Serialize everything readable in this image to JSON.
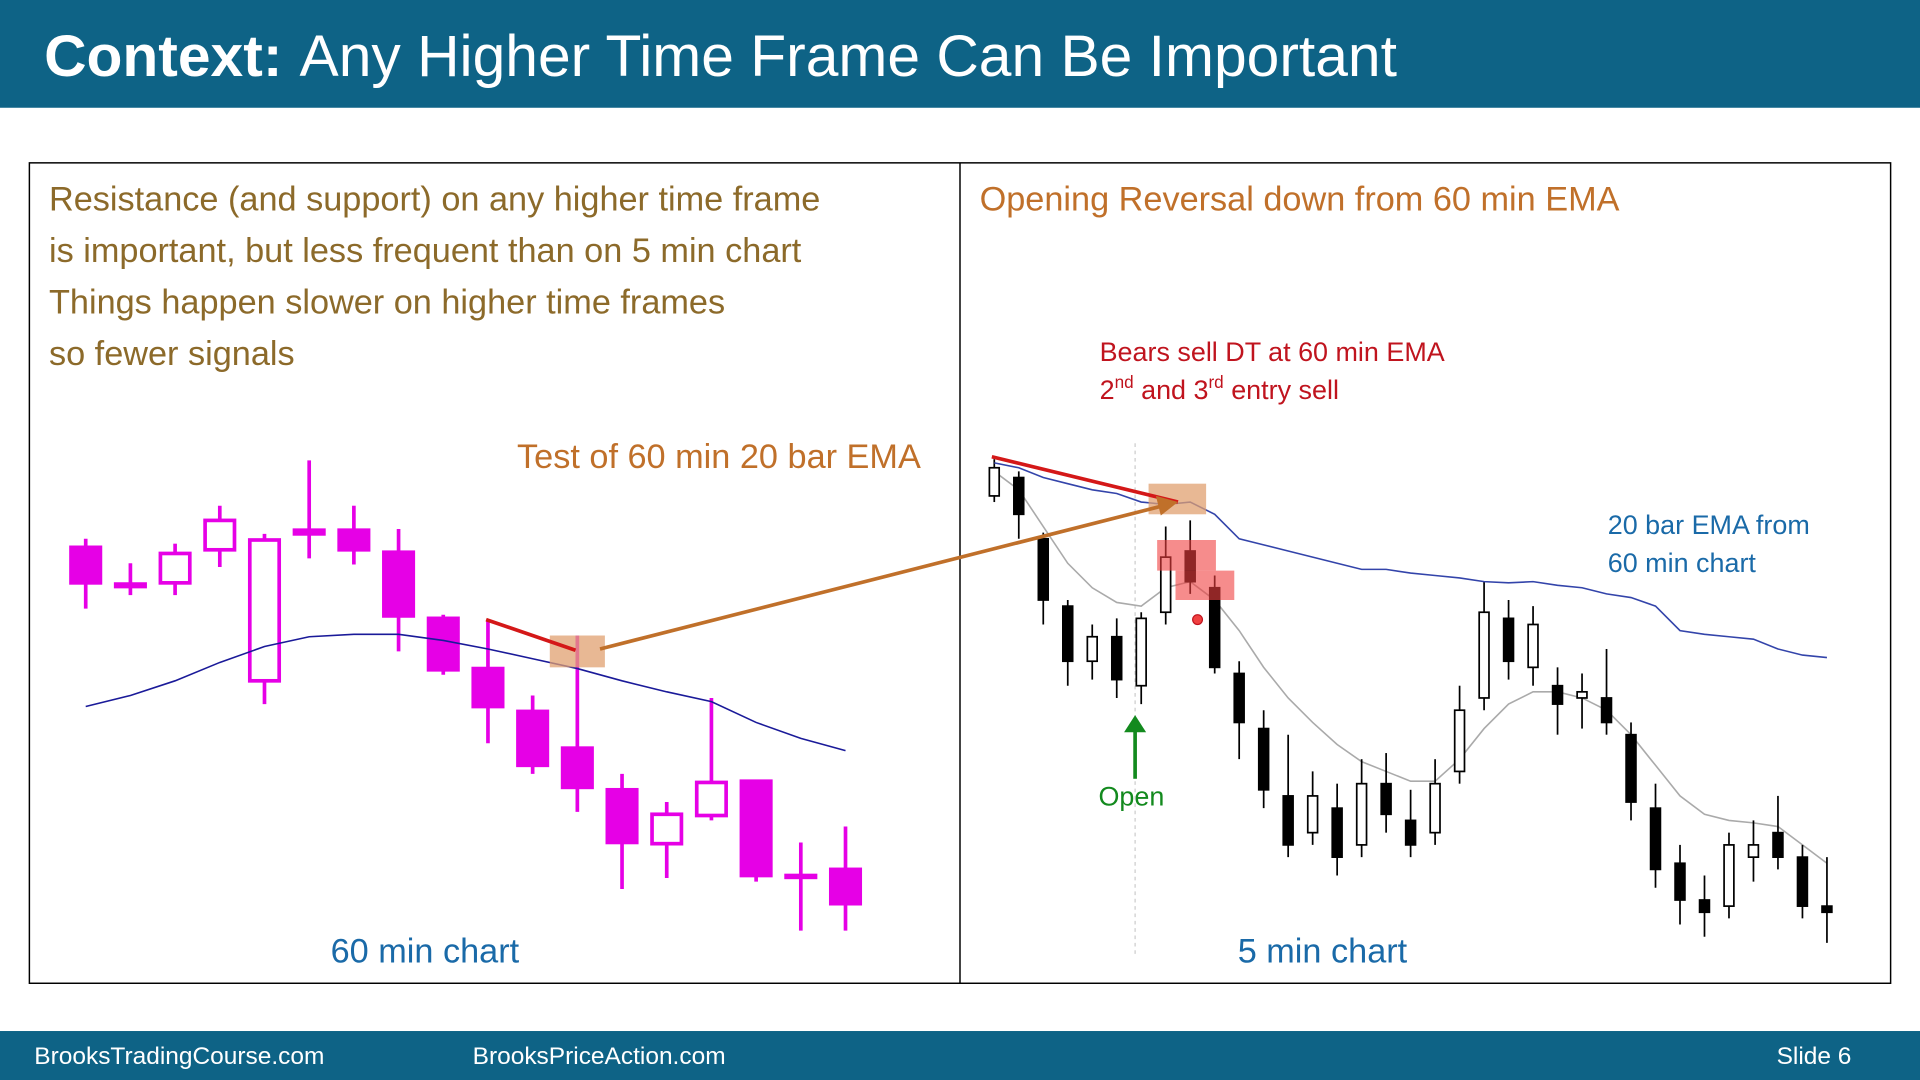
{
  "slide": {
    "title_bold": "Context:",
    "title": "Any Higher Time Frame Can Be Important",
    "left_text": [
      "Resistance (and support) on any higher time frame",
      "is important, but less frequent than on 5 min chart",
      "Things happen slower on higher time frames",
      "so fewer signals"
    ],
    "right_title": "Opening Reversal down from 60 min EMA",
    "footer_left": "BrooksTradingCourse.com",
    "footer_mid": "BrooksPriceAction.com",
    "footer_right": "Slide  6"
  },
  "chart_data": [
    {
      "type": "candlestick",
      "title": "60 min chart",
      "annotation": "Test of 60 min 20 bar EMA",
      "ylim": [
        0,
        450
      ],
      "bull_color": "#e600e6",
      "bear_color": "#e600e6",
      "bull_fill": "#ffffff",
      "ema_color": "#1a1a99",
      "open": [
        353,
        323,
        324,
        351,
        244,
        367,
        367,
        349,
        295,
        254,
        219,
        189,
        155,
        111,
        134,
        162,
        85,
        90
      ],
      "high": [
        360,
        340,
        356,
        387,
        364,
        424,
        387,
        368,
        298,
        294,
        232,
        281,
        168,
        145,
        230,
        162,
        112,
        125
      ],
      "low": [
        303,
        314,
        314,
        337,
        225,
        344,
        339,
        268,
        249,
        193,
        168,
        137,
        74,
        83,
        130,
        80,
        40,
        40
      ],
      "close": [
        324,
        321,
        348,
        375,
        359,
        364,
        351,
        297,
        253,
        223,
        175,
        157,
        112,
        135,
        161,
        85,
        84,
        62
      ],
      "ema": [
        223,
        232,
        244,
        259,
        272,
        280,
        282,
        282,
        277,
        270,
        262,
        254,
        244,
        235,
        227,
        210,
        197,
        187
      ]
    },
    {
      "type": "candlestick",
      "title": "5 min chart",
      "annotation": [
        "Bears sell DT at 60 min EMA",
        [
          "2",
          "nd",
          " and 3",
          "rd",
          " entry sell"
        ]
      ],
      "ema_label": [
        "20 bar EMA from",
        "60 min chart"
      ],
      "open_label": "Open",
      "ylim": [
        0,
        450
      ],
      "bull_color": "#000000",
      "bear_color": "#000000",
      "bull_fill": "#ffffff",
      "ema_color": "#3344aa",
      "ema2_color": "#aaaaaa",
      "open": [
        395,
        410,
        360,
        305,
        260,
        280,
        240,
        300,
        350,
        320,
        250,
        205,
        150,
        120,
        140,
        110,
        160,
        130,
        120,
        170,
        230,
        295,
        255,
        240,
        230,
        230,
        200,
        140,
        95,
        65,
        60,
        100,
        120,
        100,
        60
      ],
      "high": [
        425,
        415,
        365,
        310,
        290,
        295,
        300,
        370,
        375,
        330,
        260,
        220,
        200,
        170,
        160,
        180,
        185,
        155,
        180,
        240,
        325,
        310,
        305,
        255,
        250,
        270,
        210,
        160,
        110,
        85,
        120,
        130,
        150,
        110,
        100
      ],
      "low": [
        390,
        360,
        290,
        240,
        245,
        230,
        225,
        290,
        315,
        250,
        180,
        140,
        100,
        110,
        85,
        100,
        120,
        100,
        110,
        160,
        220,
        245,
        240,
        200,
        205,
        200,
        130,
        75,
        45,
        35,
        50,
        80,
        90,
        50,
        30
      ],
      "close": [
        418,
        380,
        310,
        260,
        280,
        245,
        295,
        345,
        325,
        255,
        210,
        155,
        110,
        150,
        100,
        160,
        135,
        110,
        160,
        220,
        300,
        260,
        290,
        225,
        235,
        210,
        145,
        90,
        65,
        55,
        110,
        110,
        100,
        60,
        55
      ],
      "ema": [
        422,
        418,
        410,
        405,
        400,
        397,
        390,
        388,
        390,
        380,
        360,
        355,
        350,
        345,
        340,
        335,
        335,
        332,
        330,
        328,
        325,
        324,
        325,
        322,
        320,
        315,
        312,
        305,
        285,
        282,
        280,
        278,
        270,
        265,
        263
      ],
      "ema2": [
        415,
        400,
        370,
        340,
        320,
        308,
        305,
        320,
        325,
        310,
        285,
        255,
        230,
        210,
        192,
        178,
        170,
        162,
        162,
        180,
        205,
        225,
        235,
        235,
        230,
        220,
        200,
        175,
        150,
        135,
        130,
        128,
        125,
        110,
        95
      ]
    }
  ]
}
